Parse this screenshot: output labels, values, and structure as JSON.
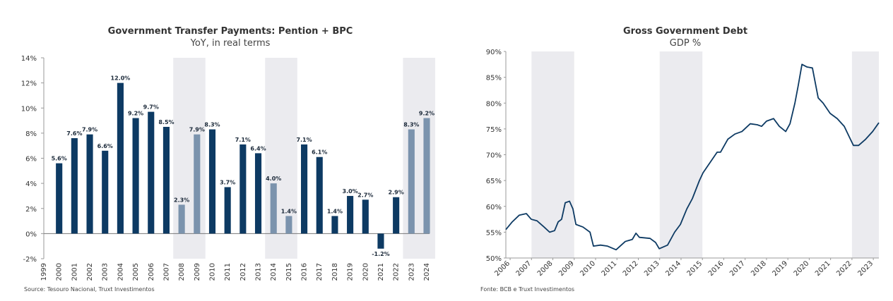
{
  "chart_data": [
    {
      "type": "bar",
      "title": "Government Transfer Payments: Pention + BPC",
      "subtitle": "YoY, in real terms",
      "source": "Source: Tesouro Nacional, Truxt Investimentos",
      "categories": [
        "1999",
        "2000",
        "2001",
        "2002",
        "2003",
        "2004",
        "2005",
        "2006",
        "2007",
        "2008",
        "2009",
        "2010",
        "2011",
        "2012",
        "2013",
        "2014",
        "2015",
        "2016",
        "2017",
        "2018",
        "2019",
        "2020",
        "2021",
        "2022",
        "2023",
        "2024"
      ],
      "values": [
        null,
        5.6,
        7.6,
        7.9,
        6.6,
        12.0,
        9.2,
        9.7,
        8.5,
        2.3,
        7.9,
        8.3,
        3.7,
        7.1,
        6.4,
        4.0,
        1.4,
        7.1,
        6.1,
        1.4,
        3.0,
        2.7,
        -1.2,
        2.9,
        8.3,
        9.2
      ],
      "value_labels": [
        null,
        "5.6%",
        "7.6%",
        "7.9%",
        "6.6%",
        "12.0%",
        "9.2%",
        "9.7%",
        "8.5%",
        "2.3%",
        "7.9%",
        "8.3%",
        "3.7%",
        "7.1%",
        "6.4%",
        "4.0%",
        "1.4%",
        "7.1%",
        "6.1%",
        "1.4%",
        "3.0%",
        "2.7%",
        "-1.2%",
        "2.9%",
        "8.3%",
        "9.2%"
      ],
      "colors": [
        null,
        "#0d3a63",
        "#0d3a63",
        "#0d3a63",
        "#0d3a63",
        "#0d3a63",
        "#0d3a63",
        "#0d3a63",
        "#0d3a63",
        "#7b93ad",
        "#7b93ad",
        "#0d3a63",
        "#0d3a63",
        "#0d3a63",
        "#0d3a63",
        "#7b93ad",
        "#7b93ad",
        "#0d3a63",
        "#0d3a63",
        "#0d3a63",
        "#0d3a63",
        "#0d3a63",
        "#0d3a63",
        "#0d3a63",
        "#7b93ad",
        "#7b93ad"
      ],
      "ylim": [
        -2,
        14
      ],
      "yticks": [
        {
          "value": -2,
          "label": "-2%"
        },
        {
          "value": 0,
          "label": "0%"
        },
        {
          "value": 2,
          "label": "2%"
        },
        {
          "value": 4,
          "label": "4%"
        },
        {
          "value": 6,
          "label": "6%"
        },
        {
          "value": 8,
          "label": "8%"
        },
        {
          "value": 10,
          "label": "10%"
        },
        {
          "value": 12,
          "label": "12%"
        },
        {
          "value": 14,
          "label": "14%"
        }
      ],
      "shaded": [
        [
          2008,
          2009
        ],
        [
          2014,
          2015
        ],
        [
          2023,
          2024
        ]
      ]
    },
    {
      "type": "line",
      "title": "Gross Government Debt",
      "subtitle": "GDP %",
      "source": "Fonte: BCB e Truxt Investimentos",
      "color": "#0d3a63",
      "x": [
        2005.8,
        2006.1,
        2006.43,
        2006.76,
        2006.99,
        2007.26,
        2007.59,
        2007.85,
        2008.08,
        2008.25,
        2008.41,
        2008.58,
        2008.78,
        2008.94,
        2009.08,
        2009.41,
        2009.74,
        2009.9,
        2010.23,
        2010.56,
        2010.96,
        2011.39,
        2011.72,
        2011.89,
        2012.05,
        2012.55,
        2012.81,
        2012.98,
        2013.37,
        2013.7,
        2013.97,
        2014.27,
        2014.53,
        2014.86,
        2015.03,
        2015.36,
        2015.69,
        2015.85,
        2016.19,
        2016.52,
        2016.85,
        2017.24,
        2017.57,
        2017.77,
        2018.0,
        2018.33,
        2018.6,
        2018.9,
        2019.1,
        2019.33,
        2019.49,
        2019.66,
        2019.89,
        2020.15,
        2020.42,
        2020.65,
        2020.98,
        2021.31,
        2021.64,
        2021.87,
        2022.07,
        2022.31,
        2022.64,
        2022.97,
        2023.26
      ],
      "values": [
        55.5,
        57,
        58.3,
        58.6,
        57.5,
        57.2,
        56,
        55,
        55.3,
        57,
        57.5,
        60.7,
        61,
        59.5,
        56.5,
        56,
        55,
        52.3,
        52.5,
        52.3,
        51.6,
        53.2,
        53.6,
        54.8,
        54,
        53.8,
        53,
        51.8,
        52.5,
        55,
        56.5,
        59.5,
        61.5,
        65,
        66.5,
        68.5,
        70.5,
        70.5,
        73,
        74,
        74.5,
        76,
        75.8,
        75.5,
        76.5,
        77,
        75.5,
        74.5,
        76,
        80,
        83.5,
        87.5,
        87,
        86.8,
        81,
        80,
        78,
        77,
        75.5,
        73.5,
        71.8,
        71.8,
        73,
        74.5,
        76.2
      ],
      "xlim": [
        2005.8,
        2023.26
      ],
      "xticks": [
        2006,
        2007,
        2008,
        2009,
        2010,
        2011,
        2012,
        2013,
        2014,
        2015,
        2016,
        2017,
        2018,
        2019,
        2020,
        2021,
        2022,
        2023
      ],
      "ylim": [
        50,
        90
      ],
      "yticks": [
        {
          "value": 50,
          "label": "50%"
        },
        {
          "value": 55,
          "label": "55%"
        },
        {
          "value": 60,
          "label": "60%"
        },
        {
          "value": 65,
          "label": "65%"
        },
        {
          "value": 70,
          "label": "70%"
        },
        {
          "value": 75,
          "label": "75%"
        },
        {
          "value": 80,
          "label": "80%"
        },
        {
          "value": 85,
          "label": "85%"
        },
        {
          "value": 90,
          "label": "90%"
        }
      ],
      "shaded": [
        [
          2007,
          2009
        ],
        [
          2013,
          2015
        ],
        [
          2022,
          2023.26
        ]
      ]
    }
  ]
}
